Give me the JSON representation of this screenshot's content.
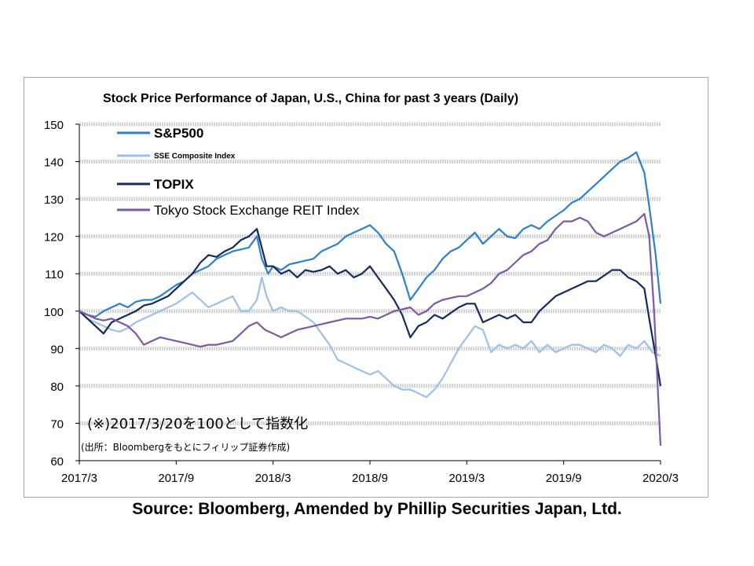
{
  "chart_data": {
    "type": "line",
    "title": "Stock Price Performance of Japan, U.S., China for past 3 years (Daily)",
    "xlabel": "",
    "ylabel": "",
    "x_ticks": [
      "2017/3",
      "2017/9",
      "2018/3",
      "2018/9",
      "2019/3",
      "2019/9",
      "2020/3"
    ],
    "x_range": [
      0,
      36
    ],
    "ylim": [
      60,
      150
    ],
    "y_ticks": [
      60,
      70,
      80,
      90,
      100,
      110,
      120,
      130,
      140,
      150
    ],
    "grid": "horizontal dashed",
    "legend_position": "top-left",
    "annotation": "(※)2017/3/20を100として指数化",
    "annotation_note": "(出所：Bloombergをもとにフィリップ証券作成)",
    "series": [
      {
        "name": "S&P500",
        "color": "#2e80c8",
        "points": [
          [
            0,
            100
          ],
          [
            0.5,
            99
          ],
          [
            1,
            98.5
          ],
          [
            1.5,
            100
          ],
          [
            2,
            101
          ],
          [
            2.5,
            102
          ],
          [
            3,
            101
          ],
          [
            3.5,
            102.5
          ],
          [
            4,
            103
          ],
          [
            4.5,
            103
          ],
          [
            5,
            104
          ],
          [
            5.5,
            105.5
          ],
          [
            6,
            107
          ],
          [
            6.5,
            108
          ],
          [
            7,
            110
          ],
          [
            7.5,
            111
          ],
          [
            8,
            112
          ],
          [
            8.5,
            114
          ],
          [
            9,
            115
          ],
          [
            9.5,
            116
          ],
          [
            10,
            116.5
          ],
          [
            10.5,
            117
          ],
          [
            11,
            120
          ],
          [
            11.3,
            114
          ],
          [
            11.7,
            110
          ],
          [
            12,
            112
          ],
          [
            12.5,
            111
          ],
          [
            13,
            112.5
          ],
          [
            13.5,
            113
          ],
          [
            14,
            113.5
          ],
          [
            14.5,
            114
          ],
          [
            15,
            116
          ],
          [
            15.5,
            117
          ],
          [
            16,
            118
          ],
          [
            16.5,
            120
          ],
          [
            17,
            121
          ],
          [
            17.5,
            122
          ],
          [
            18,
            123
          ],
          [
            18.5,
            121
          ],
          [
            19,
            118
          ],
          [
            19.5,
            116
          ],
          [
            20,
            110
          ],
          [
            20.5,
            103
          ],
          [
            21,
            106
          ],
          [
            21.5,
            109
          ],
          [
            22,
            111
          ],
          [
            22.5,
            114
          ],
          [
            23,
            116
          ],
          [
            23.5,
            117
          ],
          [
            24,
            119
          ],
          [
            24.5,
            121
          ],
          [
            25,
            118
          ],
          [
            25.5,
            120
          ],
          [
            26,
            122
          ],
          [
            26.5,
            120
          ],
          [
            27,
            119.5
          ],
          [
            27.5,
            122
          ],
          [
            28,
            123
          ],
          [
            28.5,
            122
          ],
          [
            29,
            124
          ],
          [
            29.5,
            125.5
          ],
          [
            30,
            127
          ],
          [
            30.5,
            129
          ],
          [
            31,
            130
          ],
          [
            31.5,
            132
          ],
          [
            32,
            134
          ],
          [
            32.5,
            136
          ],
          [
            33,
            138
          ],
          [
            33.5,
            140
          ],
          [
            34,
            141
          ],
          [
            34.5,
            142.5
          ],
          [
            35,
            137
          ],
          [
            35.3,
            128
          ],
          [
            35.7,
            115
          ],
          [
            36,
            102
          ]
        ]
      },
      {
        "name": "SSE Composite Index",
        "color": "#9cc0e6",
        "points": [
          [
            0,
            100
          ],
          [
            0.5,
            98
          ],
          [
            1,
            97
          ],
          [
            1.5,
            96
          ],
          [
            2,
            95
          ],
          [
            2.5,
            94.5
          ],
          [
            3,
            95.5
          ],
          [
            3.5,
            97
          ],
          [
            4,
            98
          ],
          [
            4.5,
            99
          ],
          [
            5,
            100
          ],
          [
            5.5,
            101
          ],
          [
            6,
            102
          ],
          [
            6.5,
            103.5
          ],
          [
            7,
            105
          ],
          [
            7.5,
            103
          ],
          [
            8,
            101
          ],
          [
            8.5,
            102
          ],
          [
            9,
            103
          ],
          [
            9.5,
            104
          ],
          [
            10,
            100
          ],
          [
            10.5,
            100
          ],
          [
            11,
            103
          ],
          [
            11.3,
            109
          ],
          [
            11.6,
            104
          ],
          [
            12,
            100
          ],
          [
            12.5,
            101
          ],
          [
            13,
            100
          ],
          [
            13.5,
            100
          ],
          [
            14,
            98.5
          ],
          [
            14.5,
            97
          ],
          [
            15,
            94
          ],
          [
            15.5,
            91
          ],
          [
            16,
            87
          ],
          [
            16.5,
            86
          ],
          [
            17,
            85
          ],
          [
            17.5,
            84
          ],
          [
            18,
            83
          ],
          [
            18.5,
            84
          ],
          [
            19,
            82
          ],
          [
            19.5,
            80
          ],
          [
            20,
            79
          ],
          [
            20.5,
            79
          ],
          [
            21,
            78
          ],
          [
            21.5,
            77
          ],
          [
            22,
            79
          ],
          [
            22.5,
            82
          ],
          [
            23,
            86
          ],
          [
            23.5,
            90
          ],
          [
            24,
            93
          ],
          [
            24.5,
            96
          ],
          [
            25,
            95
          ],
          [
            25.5,
            89
          ],
          [
            26,
            91
          ],
          [
            26.5,
            90
          ],
          [
            27,
            91
          ],
          [
            27.5,
            90
          ],
          [
            28,
            92
          ],
          [
            28.5,
            89
          ],
          [
            29,
            91
          ],
          [
            29.5,
            89
          ],
          [
            30,
            90
          ],
          [
            30.5,
            91
          ],
          [
            31,
            91
          ],
          [
            31.5,
            90
          ],
          [
            32,
            89
          ],
          [
            32.5,
            91
          ],
          [
            33,
            90
          ],
          [
            33.5,
            88
          ],
          [
            34,
            91
          ],
          [
            34.5,
            90
          ],
          [
            35,
            92
          ],
          [
            35.5,
            89
          ],
          [
            36,
            88
          ]
        ]
      },
      {
        "name": "TOPIX",
        "color": "#142a5e",
        "points": [
          [
            0,
            100
          ],
          [
            0.5,
            98
          ],
          [
            1,
            96
          ],
          [
            1.5,
            94
          ],
          [
            2,
            97
          ],
          [
            2.5,
            98
          ],
          [
            3,
            99
          ],
          [
            3.5,
            100
          ],
          [
            4,
            101.5
          ],
          [
            4.5,
            102
          ],
          [
            5,
            103
          ],
          [
            5.5,
            104
          ],
          [
            6,
            106
          ],
          [
            6.5,
            108
          ],
          [
            7,
            110
          ],
          [
            7.5,
            113
          ],
          [
            8,
            115
          ],
          [
            8.5,
            114.5
          ],
          [
            9,
            116
          ],
          [
            9.5,
            117
          ],
          [
            10,
            119
          ],
          [
            10.5,
            120
          ],
          [
            11,
            122
          ],
          [
            11.3,
            117
          ],
          [
            11.6,
            112
          ],
          [
            12,
            112
          ],
          [
            12.5,
            110
          ],
          [
            13,
            111
          ],
          [
            13.5,
            109
          ],
          [
            14,
            111
          ],
          [
            14.5,
            110.5
          ],
          [
            15,
            111
          ],
          [
            15.5,
            112
          ],
          [
            16,
            110
          ],
          [
            16.5,
            111
          ],
          [
            17,
            109
          ],
          [
            17.5,
            110
          ],
          [
            18,
            112
          ],
          [
            18.5,
            109
          ],
          [
            19,
            106
          ],
          [
            19.5,
            103
          ],
          [
            20,
            99
          ],
          [
            20.5,
            93
          ],
          [
            21,
            96
          ],
          [
            21.5,
            97
          ],
          [
            22,
            99
          ],
          [
            22.5,
            98
          ],
          [
            23,
            99.5
          ],
          [
            23.5,
            101
          ],
          [
            24,
            102
          ],
          [
            24.5,
            102
          ],
          [
            25,
            97
          ],
          [
            25.5,
            98
          ],
          [
            26,
            99
          ],
          [
            26.5,
            98
          ],
          [
            27,
            99
          ],
          [
            27.5,
            97
          ],
          [
            28,
            97
          ],
          [
            28.5,
            100
          ],
          [
            29,
            102
          ],
          [
            29.5,
            104
          ],
          [
            30,
            105
          ],
          [
            30.5,
            106
          ],
          [
            31,
            107
          ],
          [
            31.5,
            108
          ],
          [
            32,
            108
          ],
          [
            32.5,
            109.5
          ],
          [
            33,
            111
          ],
          [
            33.5,
            111
          ],
          [
            34,
            109
          ],
          [
            34.5,
            108
          ],
          [
            35,
            106
          ],
          [
            35.3,
            98
          ],
          [
            35.7,
            88
          ],
          [
            36,
            80
          ]
        ]
      },
      {
        "name": "Tokyo Stock Exchange REIT Index",
        "color": "#7b5aa0",
        "points": [
          [
            0,
            100
          ],
          [
            0.5,
            99
          ],
          [
            1,
            98
          ],
          [
            1.5,
            97.5
          ],
          [
            2,
            98
          ],
          [
            2.5,
            97
          ],
          [
            3,
            96
          ],
          [
            3.5,
            94
          ],
          [
            4,
            91
          ],
          [
            4.5,
            92
          ],
          [
            5,
            93
          ],
          [
            5.5,
            92.5
          ],
          [
            6,
            92
          ],
          [
            6.5,
            91.5
          ],
          [
            7,
            91
          ],
          [
            7.5,
            90.5
          ],
          [
            8,
            91
          ],
          [
            8.5,
            91
          ],
          [
            9,
            91.5
          ],
          [
            9.5,
            92
          ],
          [
            10,
            94
          ],
          [
            10.5,
            96
          ],
          [
            11,
            97
          ],
          [
            11.5,
            95
          ],
          [
            12,
            94
          ],
          [
            12.5,
            93
          ],
          [
            13,
            94
          ],
          [
            13.5,
            95
          ],
          [
            14,
            95.5
          ],
          [
            14.5,
            96
          ],
          [
            15,
            96.5
          ],
          [
            15.5,
            97
          ],
          [
            16,
            97.5
          ],
          [
            16.5,
            98
          ],
          [
            17,
            98
          ],
          [
            17.5,
            98
          ],
          [
            18,
            98.5
          ],
          [
            18.5,
            98
          ],
          [
            19,
            99
          ],
          [
            19.5,
            100
          ],
          [
            20,
            100.5
          ],
          [
            20.5,
            101
          ],
          [
            21,
            99
          ],
          [
            21.5,
            100
          ],
          [
            22,
            102
          ],
          [
            22.5,
            103
          ],
          [
            23,
            103.5
          ],
          [
            23.5,
            104
          ],
          [
            24,
            104
          ],
          [
            24.5,
            105
          ],
          [
            25,
            106
          ],
          [
            25.5,
            107.5
          ],
          [
            26,
            110
          ],
          [
            26.5,
            111
          ],
          [
            27,
            113
          ],
          [
            27.5,
            115
          ],
          [
            28,
            116
          ],
          [
            28.5,
            118
          ],
          [
            29,
            119
          ],
          [
            29.5,
            122
          ],
          [
            30,
            124
          ],
          [
            30.5,
            124
          ],
          [
            31,
            125
          ],
          [
            31.5,
            124
          ],
          [
            32,
            121
          ],
          [
            32.5,
            120
          ],
          [
            33,
            121
          ],
          [
            33.5,
            122
          ],
          [
            34,
            123
          ],
          [
            34.5,
            124
          ],
          [
            35,
            126
          ],
          [
            35.3,
            120
          ],
          [
            35.6,
            100
          ],
          [
            35.8,
            82
          ],
          [
            36,
            64
          ]
        ]
      }
    ]
  },
  "source_caption": "Source: Bloomberg, Amended by Phillip Securities Japan, Ltd."
}
